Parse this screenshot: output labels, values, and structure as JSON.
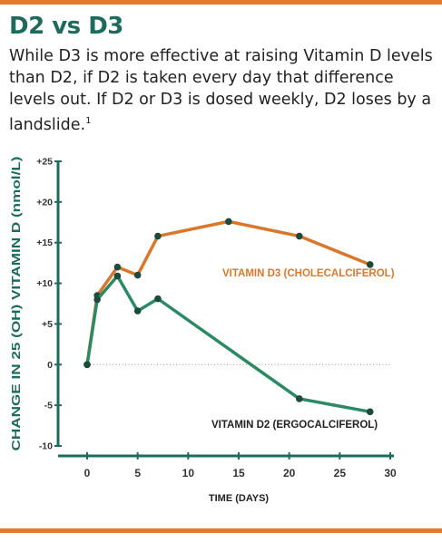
{
  "header": {
    "title": "D2 vs D3",
    "subtitle": "While D3 is more effective at raising Vitamin D levels than D2, if D2 is taken every day that difference levels out. If D2 or D3 is dosed weekly, D2 loses by a landslide.",
    "footnote_marker": "1"
  },
  "colors": {
    "rule": "#e07b2d",
    "title": "#1e6b5e",
    "axis": "#1e6b5e",
    "d3": "#d9782d",
    "d2": "#2b8a64",
    "marker": "#1d4a3c",
    "baseline": "#aaaaaa"
  },
  "chart_data": {
    "type": "line",
    "title": "",
    "xlabel": "TIME (DAYS)",
    "ylabel": "CHANGE IN 25 (OH) VITAMIN D (nmol/L)",
    "xlim": [
      0,
      30
    ],
    "ylim": [
      -10,
      25
    ],
    "xticks": [
      0,
      5,
      10,
      15,
      20,
      25,
      30
    ],
    "xtick_labels": [
      "0",
      "5",
      "10",
      "15",
      "20",
      "25",
      "30"
    ],
    "yticks": [
      25,
      20,
      15,
      10,
      5,
      0,
      -5,
      -10
    ],
    "ytick_labels": [
      "+25",
      "+20",
      "+15",
      "+10",
      "+5",
      "0",
      "-5",
      "-10"
    ],
    "grid": false,
    "series": [
      {
        "name": "VITAMIN D3 (CHOLECALCIFEROL)",
        "color": "#d9782d",
        "x": [
          0,
          1,
          3,
          5,
          7,
          14,
          21,
          28
        ],
        "y": [
          0,
          8.5,
          12,
          11,
          15.8,
          17.6,
          15.8,
          12.3
        ]
      },
      {
        "name": "VITAMIN D2 (ERGOCALCIFEROL)",
        "color": "#2b8a64",
        "x": [
          0,
          1,
          3,
          5,
          7,
          21,
          28
        ],
        "y": [
          0,
          8,
          10.9,
          6.6,
          8.1,
          -4.2,
          -5.8
        ]
      }
    ],
    "baseline": {
      "y": 0,
      "from_x": 0,
      "to_x": 30,
      "style": "dotted"
    }
  }
}
